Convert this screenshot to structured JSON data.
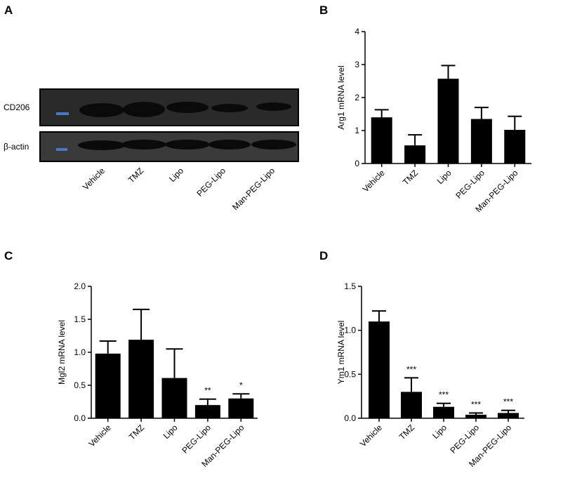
{
  "blot": {
    "panel_label": "A",
    "proteins": [
      "CD206",
      "β-actin"
    ],
    "lanes": [
      "Vehicle",
      "TMZ",
      "Lipo",
      "PEG-Lipo",
      "Man-PEG-Lipo"
    ]
  },
  "chart_data": [
    {
      "type": "bar",
      "panel_label": "B",
      "y_label": "Arg1 mRNA level",
      "categories": [
        "Vehicle",
        "TMZ",
        "Lipo",
        "PEG-Lipo",
        "Man-PEG-Lipo"
      ],
      "values": [
        1.4,
        0.55,
        2.57,
        1.35,
        1.02
      ],
      "errors": [
        0.23,
        0.32,
        0.4,
        0.35,
        0.41
      ],
      "color": "#000000",
      "ylim": [
        0,
        4
      ],
      "yticks": [
        0,
        1,
        2,
        3,
        4
      ]
    },
    {
      "type": "bar",
      "panel_label": "C",
      "y_label": "Mgl2 mRNA level",
      "categories": [
        "Vehicle",
        "TMZ",
        "Lipo",
        "PEG-Lipo",
        "Man-PEG-Lipo"
      ],
      "values": [
        0.98,
        1.19,
        0.61,
        0.2,
        0.3
      ],
      "errors": [
        0.19,
        0.46,
        0.44,
        0.09,
        0.07
      ],
      "significance": [
        null,
        null,
        null,
        "**",
        "*"
      ],
      "color": "#000000",
      "ylim": [
        0,
        2
      ],
      "yticks": [
        {
          "value": 0,
          "label": "0.0"
        },
        0.5,
        {
          "value": 1,
          "label": "1.0"
        },
        1.5,
        {
          "value": 2,
          "label": "2.0"
        }
      ]
    },
    {
      "type": "bar",
      "panel_label": "D",
      "y_label": "Ym1 mRNA level",
      "categories": [
        "Vehicle",
        "TMZ",
        "Lipo",
        "PEG-Lipo",
        "Man-PEG-Lipo"
      ],
      "values": [
        1.1,
        0.3,
        0.13,
        0.04,
        0.06
      ],
      "errors": [
        0.12,
        0.16,
        0.04,
        0.02,
        0.03
      ],
      "significance": [
        null,
        "***",
        "***",
        "***",
        "***"
      ],
      "color": "#000000",
      "ylim": [
        0,
        1.5
      ],
      "yticks": [
        {
          "value": 0,
          "label": "0.0"
        },
        0.5,
        {
          "value": 1,
          "label": "1.0"
        },
        1.5
      ]
    }
  ]
}
